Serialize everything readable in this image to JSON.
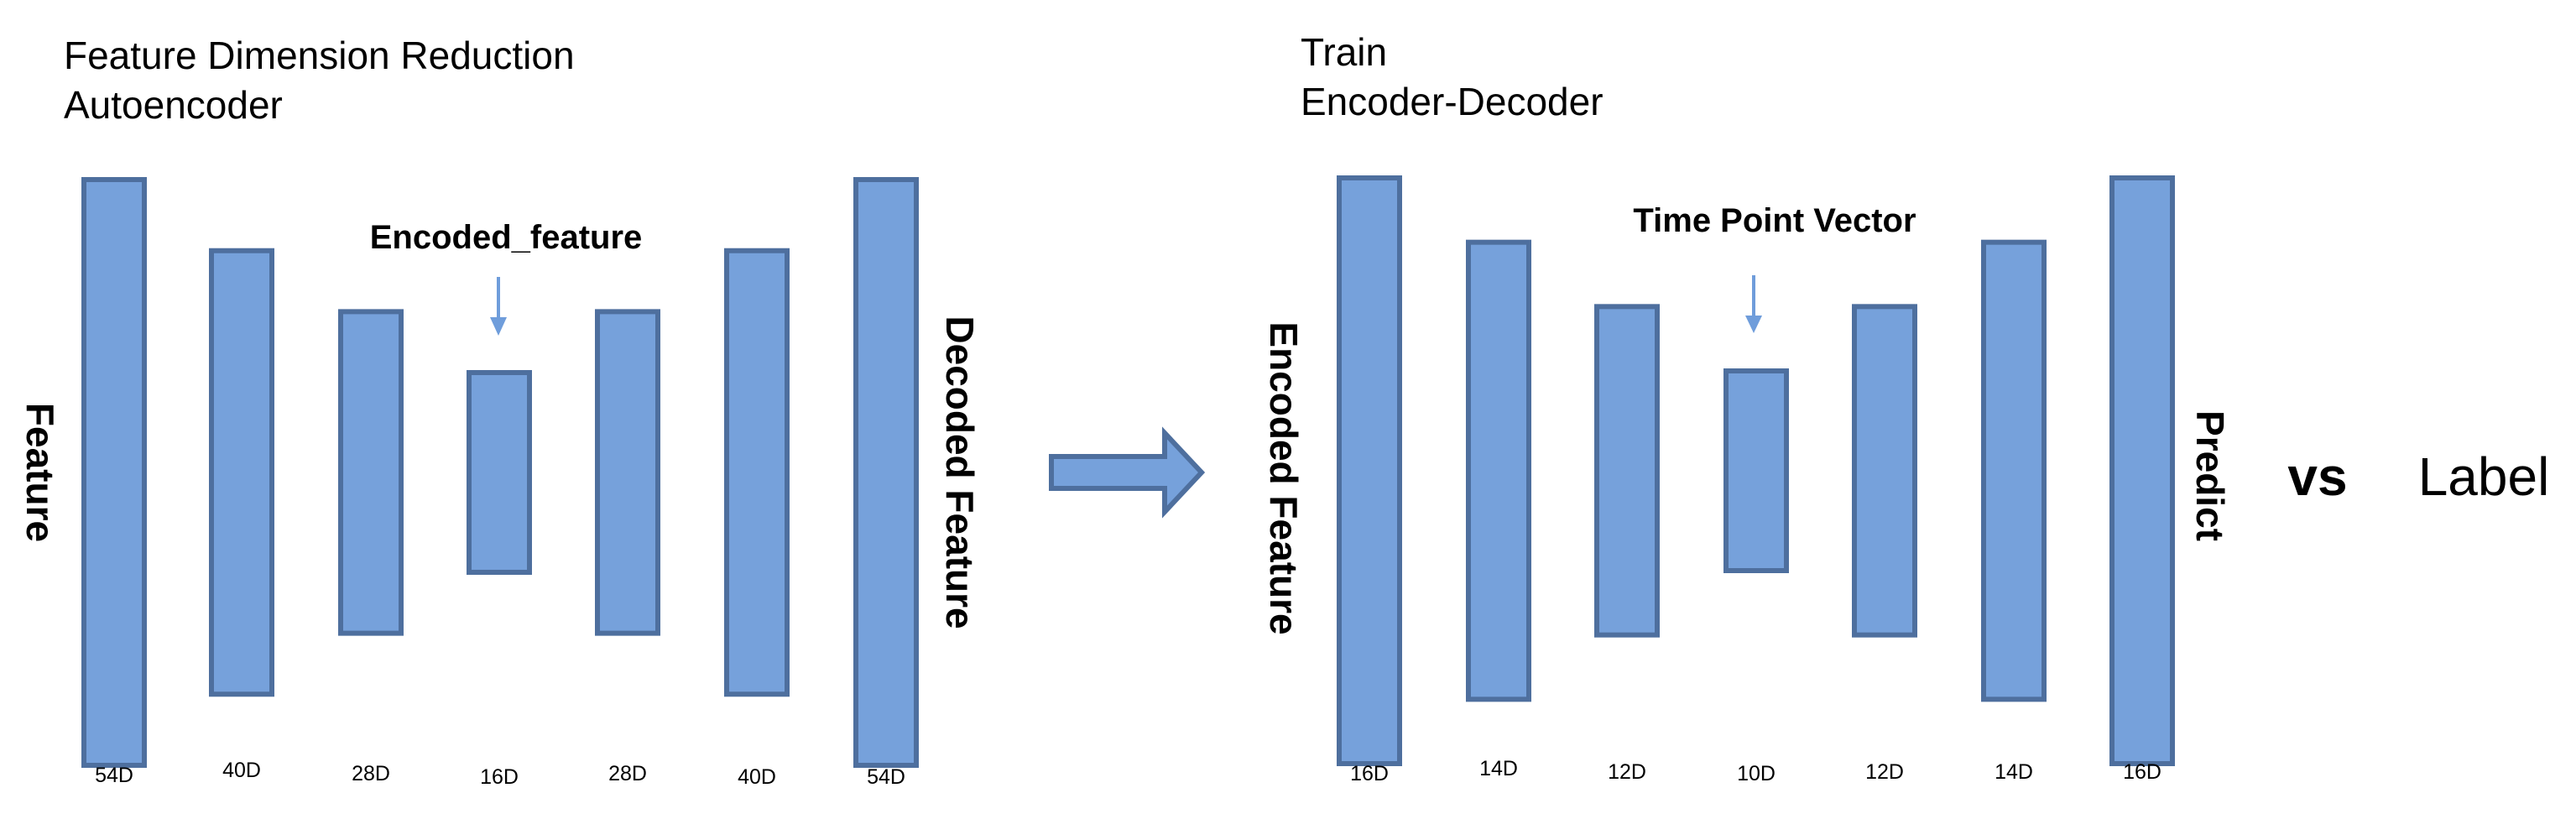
{
  "autoencoder": {
    "title_line1": "Feature Dimension Reduction",
    "title_line2": "Autoencoder",
    "input_label": "Feature",
    "output_label": "Decoded Feature",
    "bottleneck_label": "Encoded_feature",
    "layers": [
      {
        "dim": 54,
        "label": "54D"
      },
      {
        "dim": 40,
        "label": "40D"
      },
      {
        "dim": 28,
        "label": "28D"
      },
      {
        "dim": 16,
        "label": "16D"
      },
      {
        "dim": 28,
        "label": "28D"
      },
      {
        "dim": 40,
        "label": "40D"
      },
      {
        "dim": 54,
        "label": "54D"
      }
    ]
  },
  "encoder_decoder": {
    "title_line1": "Train",
    "title_line2": "Encoder-Decoder",
    "input_label": "Encoded Feature",
    "output_label": "Predict",
    "bottleneck_label": "Time Point Vector",
    "layers": [
      {
        "dim": 16,
        "label": "16D"
      },
      {
        "dim": 14,
        "label": "14D"
      },
      {
        "dim": 12,
        "label": "12D"
      },
      {
        "dim": 10,
        "label": "10D"
      },
      {
        "dim": 12,
        "label": "12D"
      },
      {
        "dim": 14,
        "label": "14D"
      },
      {
        "dim": 16,
        "label": "16D"
      }
    ]
  },
  "comparison": {
    "vs_label": "vs",
    "label_text": "Label"
  },
  "colors": {
    "layer_fill": "#76a1db",
    "layer_stroke": "#4e6f9e"
  }
}
